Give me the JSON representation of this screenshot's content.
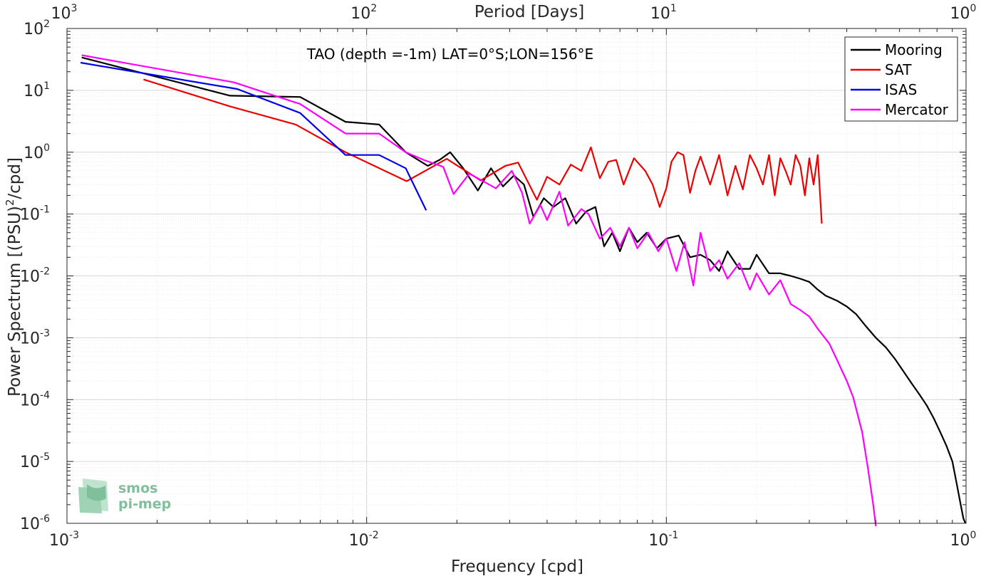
{
  "chart_data": {
    "type": "line",
    "title": "TAO (depth =-1m) LAT=0°S;LON=156°E",
    "xlabel": "Frequency [cpd]",
    "ylabel": "Power Spectrum [(PSU)",
    "ylabel_sup": "2",
    "ylabel_tail": "/cpd]",
    "top_xlabel": "Period [Days]",
    "xscale": "log",
    "yscale": "log",
    "xlim": [
      0.001,
      1
    ],
    "ylim": [
      1e-06,
      100
    ],
    "grid": true,
    "legend_position": "top-right",
    "x_ticks": [
      {
        "base": "10",
        "exp": "-3",
        "value": 0.001
      },
      {
        "base": "10",
        "exp": "-2",
        "value": 0.01
      },
      {
        "base": "10",
        "exp": "-1",
        "value": 0.1
      },
      {
        "base": "10",
        "exp": "0",
        "value": 1
      }
    ],
    "top_ticks": [
      {
        "base": "10",
        "exp": "3",
        "value": 0.001
      },
      {
        "base": "10",
        "exp": "2",
        "value": 0.01
      },
      {
        "base": "10",
        "exp": "1",
        "value": 0.1
      },
      {
        "base": "10",
        "exp": "0",
        "value": 1
      }
    ],
    "y_ticks": [
      {
        "base": "10",
        "exp": "2",
        "value": 100
      },
      {
        "base": "10",
        "exp": "1",
        "value": 10
      },
      {
        "base": "10",
        "exp": "0",
        "value": 1
      },
      {
        "base": "10",
        "exp": "-1",
        "value": 0.1
      },
      {
        "base": "10",
        "exp": "-2",
        "value": 0.01
      },
      {
        "base": "10",
        "exp": "-3",
        "value": 0.001
      },
      {
        "base": "10",
        "exp": "-4",
        "value": 0.0001
      },
      {
        "base": "10",
        "exp": "-5",
        "value": 1e-05
      },
      {
        "base": "10",
        "exp": "-6",
        "value": 1e-06
      }
    ],
    "series": [
      {
        "name": "Mooring",
        "color": "#000000",
        "points": [
          [
            0.00112,
            34
          ],
          [
            0.0035,
            8.2
          ],
          [
            0.006,
            7.8
          ],
          [
            0.0085,
            3.1
          ],
          [
            0.011,
            2.8
          ],
          [
            0.0135,
            1.0
          ],
          [
            0.016,
            0.6
          ],
          [
            0.0175,
            0.75
          ],
          [
            0.019,
            1.0
          ],
          [
            0.021,
            0.55
          ],
          [
            0.0235,
            0.24
          ],
          [
            0.026,
            0.55
          ],
          [
            0.0285,
            0.28
          ],
          [
            0.031,
            0.42
          ],
          [
            0.0335,
            0.3
          ],
          [
            0.036,
            0.09
          ],
          [
            0.039,
            0.18
          ],
          [
            0.042,
            0.13
          ],
          [
            0.046,
            0.18
          ],
          [
            0.05,
            0.07
          ],
          [
            0.054,
            0.11
          ],
          [
            0.058,
            0.13
          ],
          [
            0.062,
            0.03
          ],
          [
            0.066,
            0.05
          ],
          [
            0.07,
            0.025
          ],
          [
            0.075,
            0.06
          ],
          [
            0.08,
            0.035
          ],
          [
            0.086,
            0.05
          ],
          [
            0.093,
            0.028
          ],
          [
            0.1,
            0.04
          ],
          [
            0.11,
            0.045
          ],
          [
            0.12,
            0.02
          ],
          [
            0.13,
            0.022
          ],
          [
            0.14,
            0.018
          ],
          [
            0.15,
            0.012
          ],
          [
            0.16,
            0.025
          ],
          [
            0.175,
            0.013
          ],
          [
            0.19,
            0.013
          ],
          [
            0.2,
            0.022
          ],
          [
            0.22,
            0.011
          ],
          [
            0.24,
            0.011
          ],
          [
            0.26,
            0.01
          ],
          [
            0.28,
            0.009
          ],
          [
            0.3,
            0.008
          ],
          [
            0.32,
            0.006
          ],
          [
            0.34,
            0.0048
          ],
          [
            0.37,
            0.004
          ],
          [
            0.4,
            0.0032
          ],
          [
            0.43,
            0.0024
          ],
          [
            0.46,
            0.0016
          ],
          [
            0.5,
            0.001
          ],
          [
            0.54,
            0.0007
          ],
          [
            0.58,
            0.00045
          ],
          [
            0.62,
            0.00028
          ],
          [
            0.66,
            0.00018
          ],
          [
            0.7,
            0.00012
          ],
          [
            0.74,
            8e-05
          ],
          [
            0.78,
            5e-05
          ],
          [
            0.82,
            3e-05
          ],
          [
            0.86,
            1.8e-05
          ],
          [
            0.9,
            1e-05
          ],
          [
            0.93,
            4.5e-06
          ],
          [
            0.96,
            2e-06
          ],
          [
            0.98,
            1.2e-06
          ],
          [
            0.995,
            1e-06
          ]
        ]
      },
      {
        "name": "SAT",
        "color": "#ee0000",
        "points": [
          [
            0.0018,
            15
          ],
          [
            0.0035,
            5.5
          ],
          [
            0.0058,
            2.8
          ],
          [
            0.0085,
            1.0
          ],
          [
            0.0136,
            0.34
          ],
          [
            0.0185,
            0.78
          ],
          [
            0.024,
            0.35
          ],
          [
            0.029,
            0.6
          ],
          [
            0.032,
            0.68
          ],
          [
            0.037,
            0.17
          ],
          [
            0.04,
            0.4
          ],
          [
            0.044,
            0.3
          ],
          [
            0.048,
            0.63
          ],
          [
            0.052,
            0.5
          ],
          [
            0.056,
            1.2
          ],
          [
            0.06,
            0.38
          ],
          [
            0.064,
            0.7
          ],
          [
            0.068,
            0.75
          ],
          [
            0.072,
            0.3
          ],
          [
            0.078,
            0.8
          ],
          [
            0.085,
            0.5
          ],
          [
            0.09,
            0.3
          ],
          [
            0.095,
            0.13
          ],
          [
            0.1,
            0.26
          ],
          [
            0.104,
            0.7
          ],
          [
            0.109,
            1.0
          ],
          [
            0.114,
            0.9
          ],
          [
            0.12,
            0.22
          ],
          [
            0.125,
            0.5
          ],
          [
            0.13,
            0.85
          ],
          [
            0.14,
            0.3
          ],
          [
            0.15,
            0.9
          ],
          [
            0.16,
            0.2
          ],
          [
            0.17,
            0.6
          ],
          [
            0.18,
            0.25
          ],
          [
            0.19,
            0.9
          ],
          [
            0.2,
            0.55
          ],
          [
            0.21,
            0.3
          ],
          [
            0.22,
            0.9
          ],
          [
            0.23,
            0.2
          ],
          [
            0.24,
            0.8
          ],
          [
            0.25,
            0.5
          ],
          [
            0.26,
            0.3
          ],
          [
            0.27,
            0.9
          ],
          [
            0.28,
            0.6
          ],
          [
            0.29,
            0.2
          ],
          [
            0.3,
            0.8
          ],
          [
            0.31,
            0.3
          ],
          [
            0.32,
            0.9
          ],
          [
            0.33,
            0.07
          ]
        ]
      },
      {
        "name": "ISAS",
        "color": "#0000ee",
        "points": [
          [
            0.00111,
            28
          ],
          [
            0.0037,
            10.5
          ],
          [
            0.006,
            4.3
          ],
          [
            0.0085,
            0.9
          ],
          [
            0.011,
            0.9
          ],
          [
            0.0135,
            0.55
          ],
          [
            0.0158,
            0.115
          ]
        ]
      },
      {
        "name": "Mercator",
        "color": "#ff00ff",
        "points": [
          [
            0.00112,
            37
          ],
          [
            0.0036,
            13.5
          ],
          [
            0.006,
            6.0
          ],
          [
            0.0085,
            2.0
          ],
          [
            0.011,
            2.0
          ],
          [
            0.0135,
            1.0
          ],
          [
            0.0155,
            0.75
          ],
          [
            0.018,
            0.58
          ],
          [
            0.0195,
            0.21
          ],
          [
            0.022,
            0.45
          ],
          [
            0.025,
            0.32
          ],
          [
            0.027,
            0.26
          ],
          [
            0.0305,
            0.5
          ],
          [
            0.033,
            0.22
          ],
          [
            0.035,
            0.07
          ],
          [
            0.038,
            0.14
          ],
          [
            0.04,
            0.08
          ],
          [
            0.044,
            0.23
          ],
          [
            0.047,
            0.065
          ],
          [
            0.052,
            0.12
          ],
          [
            0.055,
            0.1
          ],
          [
            0.06,
            0.04
          ],
          [
            0.065,
            0.06
          ],
          [
            0.07,
            0.03
          ],
          [
            0.075,
            0.06
          ],
          [
            0.08,
            0.028
          ],
          [
            0.087,
            0.05
          ],
          [
            0.094,
            0.025
          ],
          [
            0.1,
            0.04
          ],
          [
            0.108,
            0.012
          ],
          [
            0.115,
            0.035
          ],
          [
            0.123,
            0.007
          ],
          [
            0.13,
            0.05
          ],
          [
            0.14,
            0.012
          ],
          [
            0.15,
            0.018
          ],
          [
            0.16,
            0.009
          ],
          [
            0.175,
            0.016
          ],
          [
            0.19,
            0.006
          ],
          [
            0.2,
            0.011
          ],
          [
            0.22,
            0.005
          ],
          [
            0.24,
            0.0085
          ],
          [
            0.26,
            0.0035
          ],
          [
            0.28,
            0.0028
          ],
          [
            0.3,
            0.0022
          ],
          [
            0.32,
            0.0014
          ],
          [
            0.35,
            0.0008
          ],
          [
            0.37,
            0.00045
          ],
          [
            0.4,
            0.0002
          ],
          [
            0.42,
            0.00011
          ],
          [
            0.45,
            3e-05
          ],
          [
            0.47,
            8e-06
          ],
          [
            0.49,
            2e-06
          ],
          [
            0.5,
            9e-07
          ]
        ]
      }
    ]
  }
}
